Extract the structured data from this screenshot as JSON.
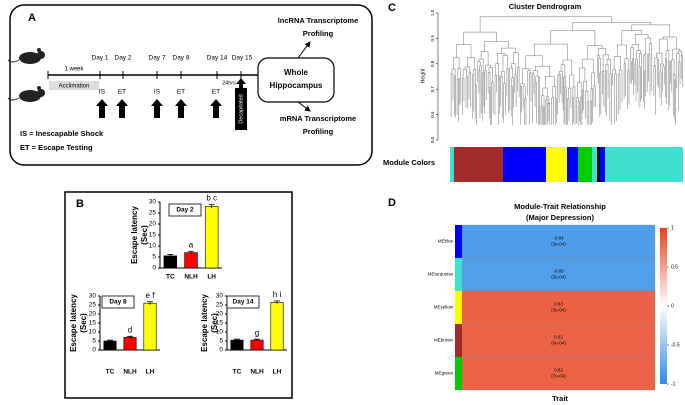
{
  "panel_a": {
    "label": "A",
    "week": "1 week",
    "acclimation": "Acclimation",
    "days": [
      "Day 1",
      "Day 2",
      "Day 7",
      "Day 8",
      "Day 14",
      "Day 15"
    ],
    "events": [
      "IS",
      "ET",
      "IS",
      "ET",
      "ET"
    ],
    "interval": "24hrs",
    "decapitated": "Decapitated",
    "hippocampus": [
      "Whole",
      "Hippocampus"
    ],
    "lncrna": [
      "lncRNA Transcriptome",
      "Profiling"
    ],
    "mrna": [
      "mRNA Transcriptome",
      "Profiling"
    ],
    "legend": [
      "IS = Inescapable Shock",
      "ET = Escape Testing"
    ]
  },
  "panel_b": {
    "label": "B"
  },
  "panel_c": {
    "label": "C",
    "module_colors": "Module Colors"
  },
  "panel_d": {
    "label": "D"
  },
  "chart_data": [
    {
      "type": "bar",
      "title": "Day 2",
      "ylabel": [
        "Escape latency",
        "(Sec)"
      ],
      "categories": [
        "TC",
        "NLH",
        "LH"
      ],
      "values": [
        5.5,
        7,
        28
      ],
      "errors": [
        0.6,
        0.6,
        0.8
      ],
      "colors": [
        "#000000",
        "#ff0000",
        "#ffff00"
      ],
      "annotations": [
        null,
        "a",
        "b c"
      ],
      "ylim": [
        0,
        30
      ],
      "yticks": [
        0,
        5,
        10,
        15,
        20,
        25,
        30
      ]
    },
    {
      "type": "bar",
      "title": "Day 8",
      "ylabel": [
        "Escape latency",
        "(Sec)"
      ],
      "categories": [
        "TC",
        "NLH",
        "LH"
      ],
      "values": [
        5,
        7,
        26
      ],
      "errors": [
        0.5,
        0.6,
        0.8
      ],
      "colors": [
        "#000000",
        "#ff0000",
        "#ffff00"
      ],
      "annotations": [
        null,
        "d",
        "e f"
      ],
      "ylim": [
        0,
        30
      ],
      "yticks": [
        0,
        5,
        10,
        15,
        20,
        25,
        30
      ]
    },
    {
      "type": "bar",
      "title": "Day 14",
      "ylabel": [
        "Escape latency",
        "(Sec)"
      ],
      "categories": [
        "TC",
        "NLH",
        "LH"
      ],
      "values": [
        5.5,
        5.5,
        26.5
      ],
      "errors": [
        0.5,
        0.5,
        0.8
      ],
      "colors": [
        "#000000",
        "#ff0000",
        "#ffff00"
      ],
      "annotations": [
        null,
        "g",
        "h i"
      ],
      "ylim": [
        0,
        30
      ],
      "yticks": [
        0,
        5,
        10,
        15,
        20,
        25,
        30
      ]
    },
    {
      "type": "dendrogram",
      "title": "Cluster Dendrogram",
      "ylabel": "Height",
      "ylim": [
        0.5,
        1
      ],
      "yticks": [
        0.5,
        0.6,
        0.7,
        0.8,
        0.9,
        {
          "value": 1,
          "label": "1.0"
        }
      ]
    },
    {
      "type": "heatmap",
      "title": [
        "Module-Trait Relationship",
        "(Major Depression)"
      ],
      "xlabel": "Trait",
      "rows": [
        "MEblue",
        "MEturquoise",
        "MEyellow",
        "MEbrown",
        "MEgreen"
      ],
      "row_colors": [
        "#0000ff",
        "#40e0d0",
        "#ffff00",
        "#a52a2a",
        "#00cc00"
      ],
      "values": [
        -0.84,
        -0.83,
        0.83,
        0.82,
        0.82
      ],
      "p_labels": [
        "(3e-04)",
        "(3e-04)",
        "(3e-04)",
        "(6e-04)",
        "(7e-04)"
      ],
      "clim": [
        -1,
        1
      ],
      "cbar_ticks": [
        1,
        0.5,
        0,
        -0.5,
        -1
      ]
    }
  ]
}
